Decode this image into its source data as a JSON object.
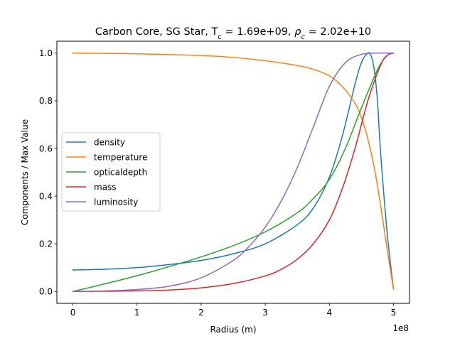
{
  "chart_data": {
    "type": "line",
    "title_parts": {
      "prefix": "Carbon Core, SG Star, T",
      "tc_sub": "c",
      "mid": " = 1.69e+09, ",
      "rho": "ρ",
      "rho_sub": "c",
      "suffix": " = 2.02e+10"
    },
    "xlabel": "Radius (m)",
    "ylabel": "Components / Max Value",
    "x_offset_label": "1e8",
    "xlim": [
      -0.25,
      5.25
    ],
    "ylim": [
      -0.05,
      1.05
    ],
    "x_ticks": [
      0,
      1,
      2,
      3,
      4,
      5
    ],
    "x_tick_labels": [
      "0",
      "1",
      "2",
      "3",
      "4",
      "5"
    ],
    "y_ticks": [
      0.0,
      0.2,
      0.4,
      0.6,
      0.8,
      1.0
    ],
    "y_tick_labels": [
      "0.0",
      "0.2",
      "0.4",
      "0.6",
      "0.8",
      "1.0"
    ],
    "grid": false,
    "legend_position": "center-left",
    "series": [
      {
        "name": "density",
        "color": "#1f77b4",
        "x": [
          0,
          0.5,
          1.0,
          1.5,
          2.0,
          2.5,
          3.0,
          3.5,
          3.75,
          4.0,
          4.2,
          4.4,
          4.5,
          4.6,
          4.65,
          4.7,
          4.75,
          4.8,
          4.9,
          5.0
        ],
        "y": [
          0.09,
          0.093,
          0.1,
          0.113,
          0.13,
          0.158,
          0.2,
          0.28,
          0.35,
          0.48,
          0.65,
          0.87,
          0.96,
          1.0,
          0.99,
          0.93,
          0.8,
          0.58,
          0.25,
          0.01
        ]
      },
      {
        "name": "temperature",
        "color": "#ff7f0e",
        "x": [
          0,
          1.0,
          2.0,
          2.5,
          3.0,
          3.5,
          3.75,
          4.0,
          4.2,
          4.4,
          4.5,
          4.6,
          4.7,
          4.8,
          4.9,
          5.0
        ],
        "y": [
          1.0,
          0.997,
          0.99,
          0.982,
          0.968,
          0.948,
          0.932,
          0.905,
          0.86,
          0.79,
          0.73,
          0.64,
          0.52,
          0.36,
          0.18,
          0.01
        ]
      },
      {
        "name": "opticaldepth",
        "color": "#2ca02c",
        "x": [
          0,
          0.5,
          1.0,
          1.5,
          2.0,
          2.5,
          3.0,
          3.5,
          3.75,
          4.0,
          4.25,
          4.5,
          4.75,
          4.9,
          5.0
        ],
        "y": [
          0.0,
          0.032,
          0.066,
          0.104,
          0.145,
          0.192,
          0.25,
          0.33,
          0.39,
          0.47,
          0.6,
          0.77,
          0.93,
          0.99,
          1.0
        ]
      },
      {
        "name": "mass",
        "color": "#d62728",
        "x": [
          0,
          1.0,
          1.5,
          2.0,
          2.5,
          3.0,
          3.25,
          3.5,
          3.75,
          4.0,
          4.2,
          4.4,
          4.6,
          4.8,
          4.9,
          5.0
        ],
        "y": [
          0.0,
          0.002,
          0.006,
          0.015,
          0.033,
          0.065,
          0.093,
          0.135,
          0.2,
          0.3,
          0.43,
          0.6,
          0.8,
          0.95,
          0.99,
          1.0
        ]
      },
      {
        "name": "luminosity",
        "color": "#9467bd",
        "x": [
          0,
          0.5,
          1.0,
          1.5,
          2.0,
          2.5,
          2.75,
          3.0,
          3.25,
          3.5,
          3.75,
          4.0,
          4.25,
          4.5,
          4.75,
          5.0
        ],
        "y": [
          0.0,
          0.002,
          0.008,
          0.022,
          0.057,
          0.13,
          0.19,
          0.27,
          0.38,
          0.52,
          0.69,
          0.86,
          0.96,
          0.995,
          1.0,
          1.0
        ]
      }
    ]
  }
}
